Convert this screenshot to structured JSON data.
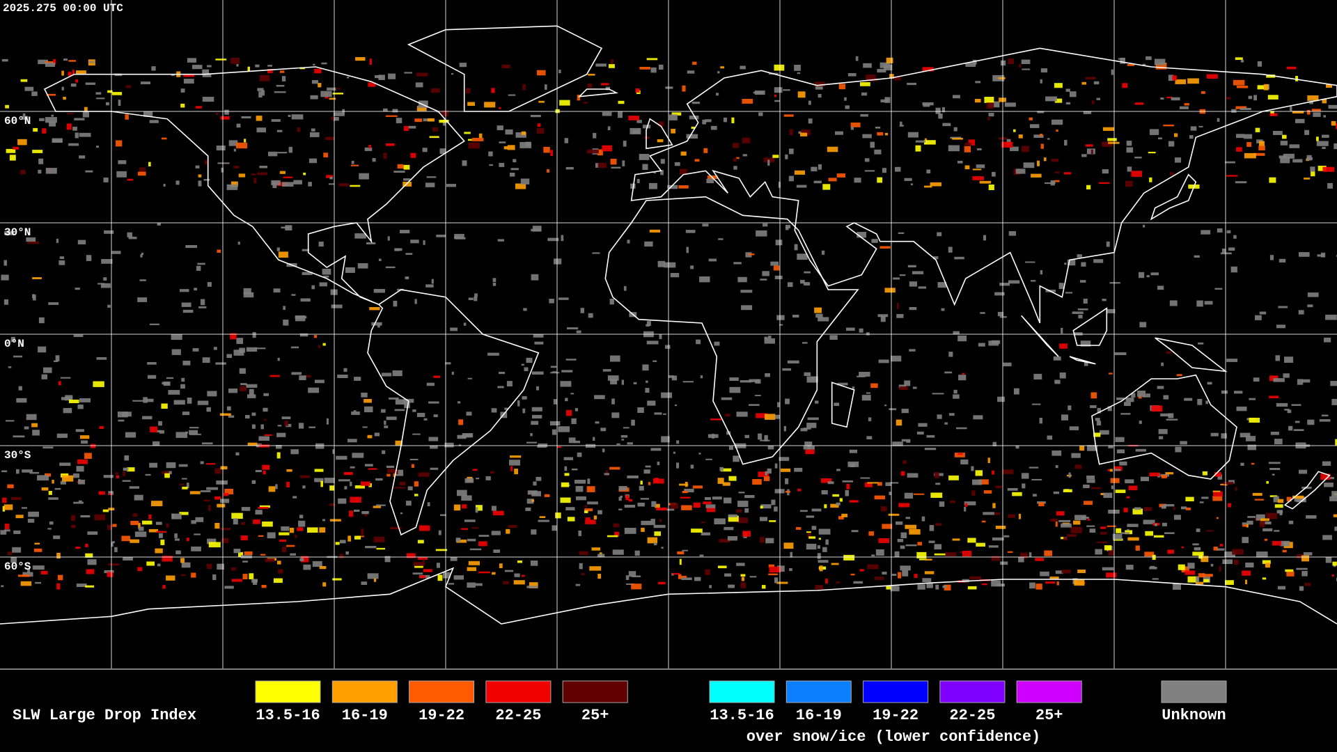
{
  "header": {
    "timestamp": "2025.275 00:00 UTC"
  },
  "lat_labels": [
    "60°N",
    "30°N",
    "0°N",
    "30°S",
    "60°S"
  ],
  "legend": {
    "title": "SLW Large Drop Index",
    "items": [
      {
        "label": "13.5-16",
        "color": "#ffff00"
      },
      {
        "label": "16-19",
        "color": "#ffa000"
      },
      {
        "label": "19-22",
        "color": "#ff5a00"
      },
      {
        "label": "22-25",
        "color": "#f00000"
      },
      {
        "label": "25+",
        "color": "#600000"
      }
    ],
    "snow_items": [
      {
        "label": "13.5-16",
        "color": "#00ffff"
      },
      {
        "label": "16-19",
        "color": "#0a80ff"
      },
      {
        "label": "19-22",
        "color": "#0000ff"
      },
      {
        "label": "22-25",
        "color": "#8000ff"
      },
      {
        "label": "25+",
        "color": "#d000ff"
      }
    ],
    "snow_caption": "over snow/ice (lower confidence)",
    "unknown": {
      "label": "Unknown",
      "color": "#808080"
    }
  }
}
